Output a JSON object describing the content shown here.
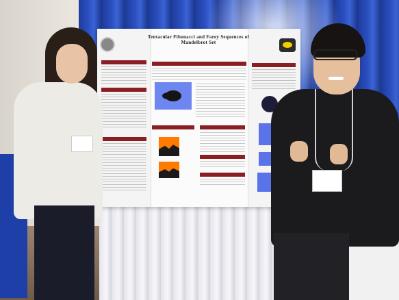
{
  "scene": {
    "description_free": true,
    "poster": {
      "title_line1": "Tentacular Fibonacci and Farey Sequences of",
      "title_line2": "Mandelbrot Set"
    },
    "colors": {
      "curtain": "#2b4fc0",
      "poster_header": "#8a1e22",
      "fractal_orange": "#ff7a00",
      "fractal_blue": "#6e86f0"
    }
  }
}
